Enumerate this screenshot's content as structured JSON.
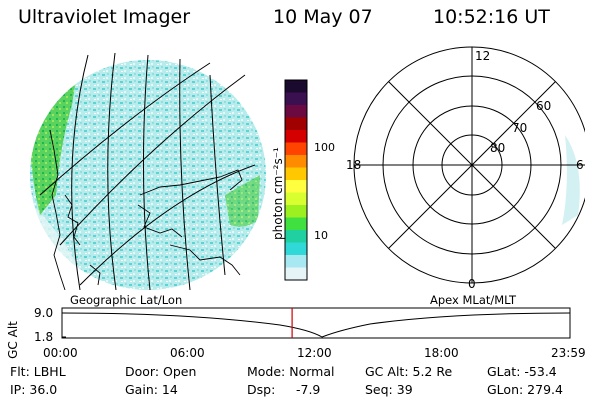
{
  "header": {
    "instrument": "Ultraviolet Imager",
    "date": "10 May 07",
    "time": "10:52:16 UT"
  },
  "colorbar": {
    "unit_label": "photon cm⁻²s⁻¹",
    "ticks": [
      "100",
      "10"
    ],
    "colors": [
      "#1a0a2e",
      "#3a1050",
      "#6a0a40",
      "#a00000",
      "#d40000",
      "#ff4400",
      "#ff8c00",
      "#ffc800",
      "#ffff40",
      "#d8ff30",
      "#9cf020",
      "#40e040",
      "#20d0a0",
      "#30d8d8",
      "#a8e8f0",
      "#e6f4f8"
    ]
  },
  "polar_plot": {
    "mlt_labels": {
      "top": "12",
      "left": "18",
      "right": "6",
      "bottom": "0"
    },
    "lat_labels": [
      "60",
      "70",
      "80"
    ]
  },
  "projection_labels": {
    "left": "Geographic Lat/Lon",
    "right": "Apex MLat/MLT"
  },
  "altitude_plot": {
    "ylabel": "GC Alt",
    "yticks": [
      "9.0",
      "1.8"
    ],
    "xticks": [
      "00:00",
      "06:00",
      "12:00",
      "18:00",
      "23:59"
    ],
    "current_time_fraction": 0.453,
    "marker_color": "#cc0000"
  },
  "info": {
    "flt": "Flt: LBHL",
    "ip": "IP: 36.0",
    "door": "Door: Open",
    "gain": "Gain: 14",
    "mode": "Mode: Normal",
    "dsp_label": "Dsp:",
    "dsp_value": "-7.9",
    "gc_alt": "GC Alt: 5.2 Re",
    "seq": "Seq: 39",
    "glat": "GLat: -53.4",
    "glon": "GLon: 279.4"
  }
}
